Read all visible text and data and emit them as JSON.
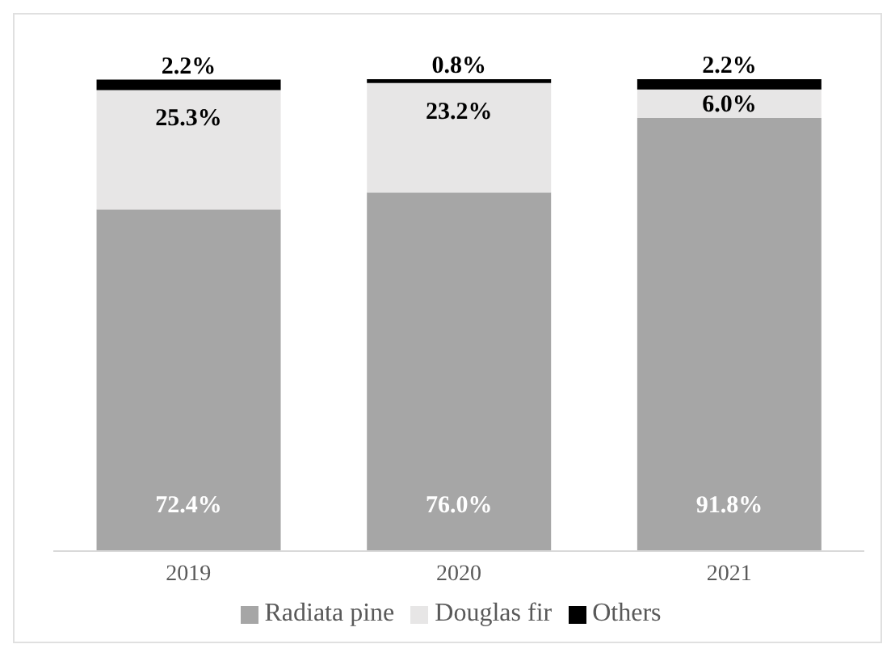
{
  "chart_data": {
    "type": "bar",
    "stacked": true,
    "categories": [
      "2019",
      "2020",
      "2021"
    ],
    "series": [
      {
        "name": "Radiata pine",
        "color": "#a6a6a6",
        "values": [
          72.4,
          76.0,
          91.8
        ],
        "value_labels": [
          "72.4%",
          "76.0%",
          "91.8%"
        ]
      },
      {
        "name": "Douglas fir",
        "color": "#e7e6e6",
        "values": [
          25.3,
          23.2,
          6.0
        ],
        "value_labels": [
          "25.3%",
          "23.2%",
          "6.0%"
        ]
      },
      {
        "name": "Others",
        "color": "#000000",
        "values": [
          2.2,
          0.8,
          2.2
        ],
        "value_labels": [
          "2.2%",
          "0.8%",
          "2.2%"
        ]
      }
    ],
    "tick_labels": "x",
    "legend": "bottom"
  }
}
